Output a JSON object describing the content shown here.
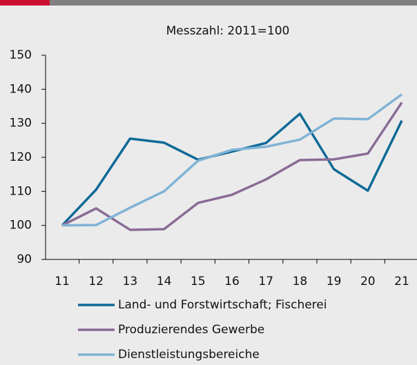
{
  "chart_data": {
    "type": "line",
    "title": "Messzahl: 2011=100",
    "categories": [
      "11",
      "12",
      "13",
      "14",
      "15",
      "16",
      "17",
      "18",
      "19",
      "20",
      "21"
    ],
    "series": [
      {
        "name": "Land- und Forstwirtschaft; Fischerei",
        "color": "#0e6a96",
        "values": [
          100,
          110.5,
          125.5,
          124.3,
          119.3,
          121.7,
          124.2,
          132.8,
          116.5,
          110.2,
          130.8
        ]
      },
      {
        "name": "Produzierendes Gewerbe",
        "color": "#8a6b96",
        "values": [
          100,
          105,
          98.7,
          98.9,
          106.6,
          109,
          113.5,
          119.2,
          119.4,
          121.1,
          136.1
        ]
      },
      {
        "name": "Dienstleistungsbereiche",
        "color": "#7fb3d5",
        "values": [
          100,
          100.1,
          105.2,
          110,
          119,
          122.2,
          123.1,
          125.2,
          131.4,
          131.2,
          138.5
        ]
      }
    ],
    "ylim": [
      90,
      150
    ],
    "yticks": [
      90,
      100,
      110,
      120,
      130,
      140,
      150
    ],
    "grid": false
  }
}
